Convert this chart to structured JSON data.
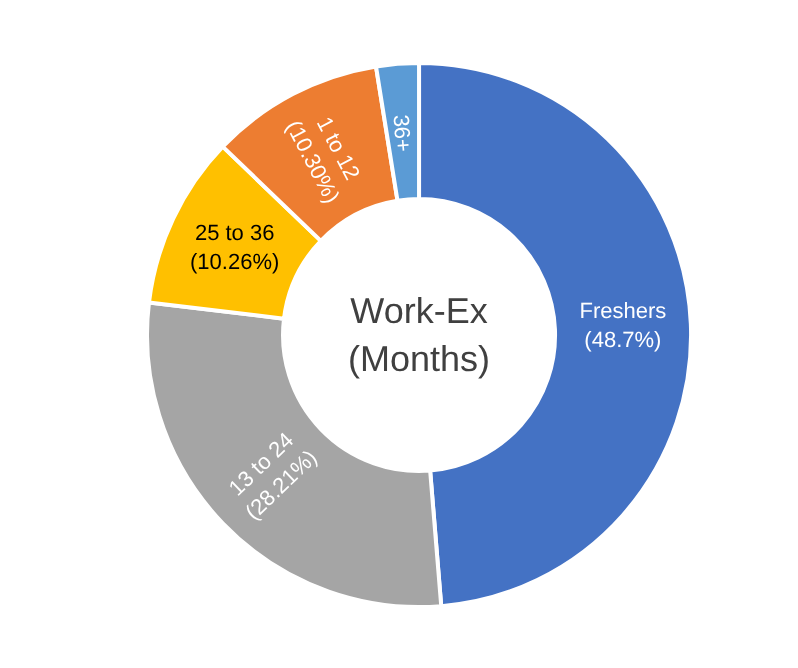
{
  "chart_data": {
    "type": "donut",
    "title": "Work-Ex\n(Months)",
    "categories": [
      "Freshers",
      "13 to 24",
      "25 to 36",
      "1 to 12",
      "36+"
    ],
    "values": [
      48.7,
      28.21,
      10.26,
      10.3,
      2.53
    ],
    "colors": [
      "#4472c4",
      "#a5a5a5",
      "#ffc000",
      "#ed7d31",
      "#5b9bd5"
    ],
    "value_labels": [
      "(48.7%)",
      "(28.21%)",
      "(10.26%)",
      "(10.30%)",
      null
    ]
  }
}
